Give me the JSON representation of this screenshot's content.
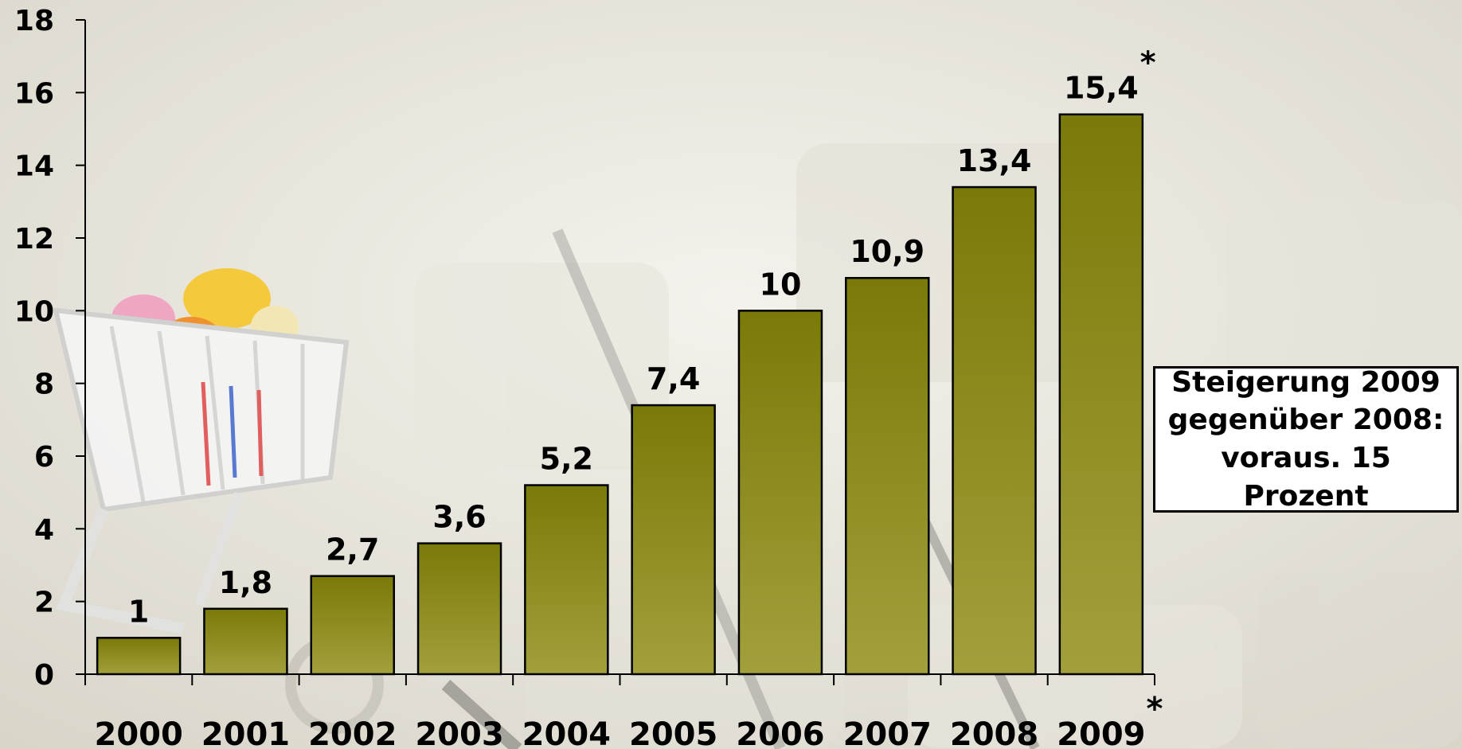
{
  "background": {
    "photo": "shopping-cart-on-keyboard"
  },
  "colors": {
    "bar_top": "#7a7a08",
    "bar_bottom": "#a2a03c",
    "bar_stroke": "#000000"
  },
  "chart_data": {
    "type": "bar",
    "categories": [
      "2000",
      "2001",
      "2002",
      "2003",
      "2004",
      "2005",
      "2006",
      "2007",
      "2008",
      "2009"
    ],
    "values": [
      1,
      1.8,
      2.7,
      3.6,
      5.2,
      7.4,
      10,
      10.9,
      13.4,
      15.4
    ],
    "value_labels": [
      "1",
      "1,8",
      "2,7",
      "3,6",
      "5,2",
      "7,4",
      "10",
      "10,9",
      "13,4",
      "15,4"
    ],
    "category_marks": [
      "",
      "",
      "",
      "",
      "",
      "",
      "",
      "",
      "",
      "*"
    ],
    "value_marks": [
      "",
      "",
      "",
      "",
      "",
      "",
      "",
      "",
      "",
      "*"
    ],
    "ylim": [
      0,
      18
    ],
    "yticks": [
      0,
      2,
      4,
      6,
      8,
      10,
      12,
      14,
      16,
      18
    ],
    "ytick_labels": [
      "0",
      "2",
      "4",
      "6",
      "8",
      "10",
      "12",
      "14",
      "16",
      "18"
    ],
    "title": "",
    "xlabel": "",
    "ylabel": "",
    "grid": false,
    "legend": "none"
  },
  "annotation": {
    "text": "Steigerung 2009\ngegenüber 2008:\nvoraus. 15 Prozent"
  }
}
